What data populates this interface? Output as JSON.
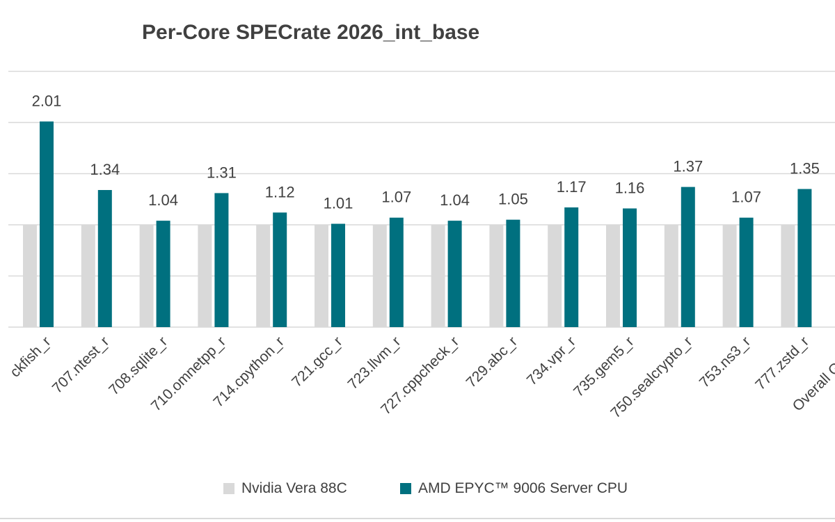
{
  "chart_data": {
    "type": "bar",
    "title": "Per-Core SPECrate 2026_int_base",
    "categories": [
      "ckfish_r",
      "707.ntest_r",
      "708.sqlite_r",
      "710.omnetpp_r",
      "714.cpython_r",
      "721.gcc_r",
      "723.llvm_r",
      "727.cppcheck_r",
      "729.abc_r",
      "734.vpr_r",
      "735.gem5_r",
      "750.sealcrypto_r",
      "753.ns3_r",
      "777.zstd_r",
      "Overall Geome"
    ],
    "series": [
      {
        "name": "Nvidia Vera 88C",
        "color": "#d9d9d9",
        "values": [
          1,
          1,
          1,
          1,
          1,
          1,
          1,
          1,
          1,
          1,
          1,
          1,
          1,
          1,
          1
        ]
      },
      {
        "name": "AMD EPYC™ 9006 Server CPU",
        "color": "#00707f",
        "values": [
          2.01,
          1.34,
          1.04,
          1.31,
          1.12,
          1.01,
          1.07,
          1.04,
          1.05,
          1.17,
          1.16,
          1.37,
          1.07,
          1.35,
          null
        ]
      }
    ],
    "data_labels": [
      "2.01",
      "1.34",
      "1.04",
      "1.31",
      "1.12",
      "1.01",
      "1.07",
      "1.04",
      "1.05",
      "1.17",
      "1.16",
      "1.37",
      "1.07",
      "1.35"
    ],
    "ylim": [
      0,
      2.5
    ],
    "gridlines": [
      0,
      0.5,
      1,
      1.5,
      2,
      2.5
    ],
    "grid": true,
    "legend_position": "bottom",
    "label_color": "#404040",
    "grid_color": "#d9d9d9"
  }
}
